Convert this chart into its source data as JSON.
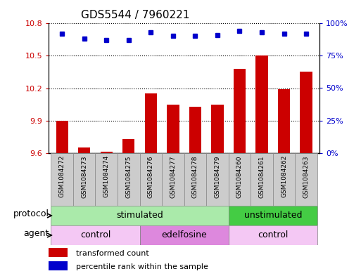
{
  "title": "GDS5544 / 7960221",
  "samples": [
    "GSM1084272",
    "GSM1084273",
    "GSM1084274",
    "GSM1084275",
    "GSM1084276",
    "GSM1084277",
    "GSM1084278",
    "GSM1084279",
    "GSM1084260",
    "GSM1084261",
    "GSM1084262",
    "GSM1084263"
  ],
  "transformed_count": [
    9.9,
    9.65,
    9.61,
    9.73,
    10.15,
    10.05,
    10.03,
    10.05,
    10.38,
    10.5,
    10.19,
    10.35
  ],
  "percentile_rank": [
    92,
    88,
    87,
    87,
    93,
    90,
    90,
    91,
    94,
    93,
    92,
    92
  ],
  "ylim_left": [
    9.6,
    10.8
  ],
  "ylim_right": [
    0,
    100
  ],
  "yticks_left": [
    9.6,
    9.9,
    10.2,
    10.5,
    10.8
  ],
  "yticks_right": [
    0,
    25,
    50,
    75,
    100
  ],
  "ytick_labels_right": [
    "0%",
    "25%",
    "50%",
    "75%",
    "100%"
  ],
  "bar_color": "#cc0000",
  "dot_color": "#0000cc",
  "protocol_groups": [
    {
      "label": "stimulated",
      "start": 0,
      "end": 8,
      "color": "#aaeaaa"
    },
    {
      "label": "unstimulated",
      "start": 8,
      "end": 12,
      "color": "#44cc44"
    }
  ],
  "agent_groups": [
    {
      "label": "control",
      "start": 0,
      "end": 4,
      "color": "#f4c8f4"
    },
    {
      "label": "edelfosine",
      "start": 4,
      "end": 8,
      "color": "#dd88dd"
    },
    {
      "label": "control",
      "start": 8,
      "end": 12,
      "color": "#f4c8f4"
    }
  ],
  "sample_box_color": "#cccccc",
  "sample_box_edge": "#888888",
  "legend_items": [
    {
      "label": "transformed count",
      "color": "#cc0000"
    },
    {
      "label": "percentile rank within the sample",
      "color": "#0000cc"
    }
  ],
  "protocol_label": "protocol",
  "agent_label": "agent",
  "title_fontsize": 11,
  "tick_fontsize": 8,
  "label_fontsize": 9,
  "sample_fontsize": 6.5,
  "legend_fontsize": 8
}
